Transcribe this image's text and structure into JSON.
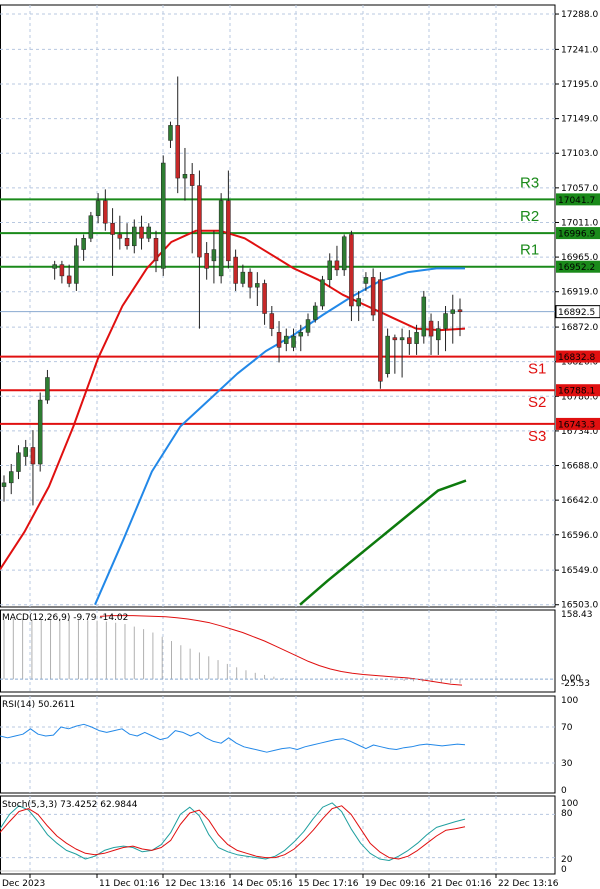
{
  "chart_data": [
    {
      "type": "candlestick",
      "grid": true,
      "x_ticks": [
        "Dec 2023",
        "11 Dec 01:16",
        "12 Dec 13:16",
        "14 Dec 05:16",
        "15 Dec 17:16",
        "19 Dec 09:16",
        "21 Dec 01:16",
        "22 Dec 13:16"
      ],
      "y_ticks": [
        "17288.0",
        "17241.0",
        "17195.0",
        "17149.0",
        "17103.0",
        "17057.0",
        "17011.0",
        "16965.0",
        "16919.0",
        "16872.0",
        "16826.0",
        "16780.0",
        "16734.0",
        "16688.0",
        "16642.0",
        "16596.0",
        "16549.0",
        "16503.0"
      ],
      "ylim": [
        16500,
        17300
      ],
      "current_price": "16892.5",
      "colors": {
        "up": "#2e7d32",
        "down": "#c62828",
        "resistance": "#1a8a1a",
        "support": "#e01010",
        "ma_fast": "#e01010",
        "ma_slow": "#2288e8",
        "ma_long": "#0d7a0d",
        "price_line": "#8aaad0"
      },
      "levels": [
        {
          "label": "R3",
          "value": 17041.7,
          "tag": "17041.7",
          "kind": "resistance"
        },
        {
          "label": "R2",
          "value": 16996.9,
          "tag": "16996.9",
          "kind": "resistance"
        },
        {
          "label": "R1",
          "value": 16952.2,
          "tag": "16952.2",
          "kind": "resistance"
        },
        {
          "label": "S1",
          "value": 16832.8,
          "tag": "16832.8",
          "kind": "support"
        },
        {
          "label": "S2",
          "value": 16788.1,
          "tag": "16788.1",
          "kind": "support"
        },
        {
          "label": "S3",
          "value": 16743.3,
          "tag": "16743.3",
          "kind": "support"
        }
      ],
      "candles": [
        [
          16660,
          16675,
          16640,
          16665
        ],
        [
          16665,
          16690,
          16650,
          16680
        ],
        [
          16680,
          16715,
          16670,
          16705
        ],
        [
          16700,
          16722,
          16688,
          16712
        ],
        [
          16712,
          16735,
          16635,
          16690
        ],
        [
          16690,
          16785,
          16680,
          16775
        ],
        [
          16775,
          16815,
          16770,
          16805
        ],
        [
          16950,
          16960,
          16935,
          16955
        ],
        [
          16955,
          16960,
          16930,
          16940
        ],
        [
          16940,
          16955,
          16925,
          16930
        ],
        [
          16930,
          16990,
          16920,
          16980
        ],
        [
          16975,
          16995,
          16960,
          16990
        ],
        [
          16990,
          17025,
          16985,
          17020
        ],
        [
          17020,
          17050,
          17010,
          17040
        ],
        [
          17040,
          17055,
          17000,
          17010
        ],
        [
          17010,
          17030,
          16940,
          16995
        ],
        [
          16995,
          17020,
          16975,
          16990
        ],
        [
          16990,
          17010,
          16975,
          16980
        ],
        [
          16980,
          17015,
          16970,
          17005
        ],
        [
          17005,
          17020,
          16975,
          16990
        ],
        [
          16990,
          17010,
          16985,
          17005
        ],
        [
          16990,
          17000,
          16945,
          16960
        ],
        [
          16950,
          17100,
          16940,
          17090
        ],
        [
          17120,
          17145,
          17110,
          17140
        ],
        [
          17140,
          17205,
          17050,
          17070
        ],
        [
          17070,
          17110,
          17040,
          17075
        ],
        [
          17075,
          17090,
          16970,
          17060
        ],
        [
          17060,
          17080,
          16870,
          16965
        ],
        [
          16970,
          16985,
          16935,
          16950
        ],
        [
          16960,
          17000,
          16930,
          16975
        ],
        [
          16940,
          17050,
          16930,
          17040
        ],
        [
          17040,
          17080,
          16950,
          16960
        ],
        [
          16965,
          16975,
          16920,
          16930
        ],
        [
          16930,
          16955,
          16925,
          16945
        ],
        [
          16945,
          16950,
          16910,
          16925
        ],
        [
          16925,
          16945,
          16900,
          16930
        ],
        [
          16930,
          16935,
          16875,
          16890
        ],
        [
          16890,
          16900,
          16860,
          16870
        ],
        [
          16865,
          16880,
          16825,
          16845
        ],
        [
          16850,
          16870,
          16840,
          16860
        ],
        [
          16845,
          16870,
          16840,
          16860
        ],
        [
          16860,
          16875,
          16840,
          16865
        ],
        [
          16865,
          16890,
          16860,
          16882
        ],
        [
          16882,
          16905,
          16878,
          16900
        ],
        [
          16900,
          16940,
          16895,
          16935
        ],
        [
          16935,
          16970,
          16925,
          16960
        ],
        [
          16960,
          16980,
          16940,
          16948
        ],
        [
          16948,
          16995,
          16940,
          16992
        ],
        [
          16995,
          17000,
          16880,
          16900
        ],
        [
          16900,
          16920,
          16880,
          16910
        ],
        [
          16930,
          16945,
          16920,
          16938
        ],
        [
          16938,
          16950,
          16880,
          16888
        ],
        [
          16935,
          16945,
          16790,
          16800
        ],
        [
          16810,
          16870,
          16805,
          16860
        ],
        [
          16858,
          16862,
          16810,
          16855
        ],
        [
          16855,
          16870,
          16805,
          16858
        ],
        [
          16858,
          16868,
          16835,
          16850
        ],
        [
          16850,
          16875,
          16835,
          16865
        ],
        [
          16860,
          16920,
          16850,
          16912
        ],
        [
          16880,
          16890,
          16835,
          16860
        ],
        [
          16855,
          16880,
          16835,
          16870
        ],
        [
          16870,
          16900,
          16840,
          16890
        ],
        [
          16890,
          16915,
          16850,
          16895
        ],
        [
          16895,
          16910,
          16860,
          16892.5
        ]
      ],
      "ma_fast": [
        16550,
        16600,
        16660,
        16740,
        16830,
        16900,
        16950,
        16985,
        17000,
        17000,
        16990,
        16970,
        16950,
        16935,
        16915,
        16900,
        16885,
        16870,
        16868,
        16870
      ],
      "ma_slow": [
        16503,
        16590,
        16680,
        16740,
        16775,
        16810,
        16840,
        16862,
        16888,
        16912,
        16933,
        16945,
        16950,
        16950
      ],
      "ma_long": [
        16503,
        16535,
        16565,
        16595,
        16625,
        16655,
        16668
      ]
    },
    {
      "type": "bar",
      "title": "MACD(12,26,9) -9.79 -14.02",
      "y_ticks": [
        "158.43",
        "0.00",
        "-25.53"
      ],
      "ylim": [
        -25.53,
        158.43
      ],
      "values": [
        140,
        142,
        143,
        141,
        140,
        142,
        143,
        141,
        140,
        139,
        138,
        136,
        133,
        130,
        124,
        118,
        110,
        100,
        90,
        80,
        72,
        63,
        54,
        45,
        36,
        28,
        21,
        15,
        10,
        6,
        3,
        1,
        0,
        0,
        0,
        0,
        0,
        0,
        0,
        0,
        -1,
        -2,
        -3,
        -4,
        -5,
        -6,
        -7,
        -8,
        -9,
        -10
      ],
      "signal": [
        148,
        150,
        150,
        150,
        149,
        148,
        147,
        145,
        142,
        138,
        133,
        126,
        118,
        110,
        100,
        90,
        78,
        66,
        54,
        42,
        32,
        24,
        18,
        14,
        11,
        9,
        7,
        5,
        3,
        0,
        -4,
        -8,
        -12,
        -14
      ]
    },
    {
      "type": "line",
      "title": "RSI(14) 50.2611",
      "y_ticks": [
        "100",
        "70",
        "30",
        "0"
      ],
      "ylim": [
        0,
        100
      ],
      "values": [
        60,
        58,
        60,
        62,
        68,
        62,
        60,
        61,
        70,
        68,
        71,
        73,
        70,
        66,
        64,
        66,
        68,
        62,
        60,
        64,
        60,
        56,
        58,
        66,
        64,
        60,
        64,
        58,
        54,
        52,
        58,
        52,
        48,
        46,
        44,
        42,
        44,
        46,
        47,
        45,
        48,
        50,
        52,
        54,
        56,
        57,
        54,
        50,
        46,
        50,
        48,
        46,
        45,
        47,
        48,
        50,
        51,
        50,
        49,
        50,
        51,
        50.26
      ]
    },
    {
      "type": "line",
      "title": "Stoch(5,3,3) 73.4252 62.9844",
      "y_ticks": [
        "100",
        "80",
        "20",
        "0"
      ],
      "ylim": [
        0,
        100
      ],
      "series": [
        {
          "values": [
            60,
            80,
            92,
            86,
            70,
            52,
            40,
            30,
            25,
            18,
            22,
            30,
            34,
            36,
            34,
            28,
            30,
            38,
            55,
            80,
            90,
            78,
            52,
            34,
            28,
            24,
            22,
            20,
            18,
            22,
            30,
            42,
            56,
            74,
            90,
            96,
            84,
            60,
            40,
            26,
            18,
            16,
            22,
            30,
            40,
            52,
            62,
            66,
            70,
            73.43
          ]
        },
        {
          "values": [
            55,
            70,
            84,
            88,
            80,
            64,
            50,
            40,
            32,
            26,
            24,
            26,
            30,
            34,
            36,
            32,
            30,
            34,
            44,
            66,
            82,
            86,
            72,
            52,
            38,
            30,
            26,
            22,
            20,
            20,
            24,
            32,
            44,
            58,
            74,
            88,
            92,
            80,
            60,
            40,
            28,
            20,
            18,
            22,
            30,
            40,
            50,
            58,
            60,
            62.98
          ]
        }
      ]
    }
  ]
}
